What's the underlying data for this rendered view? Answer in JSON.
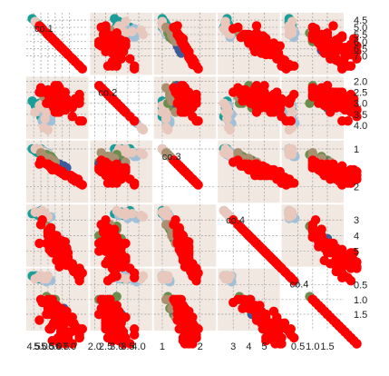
{
  "chart_data": {
    "type": "scatter",
    "variables": [
      {
        "name": "col1",
        "label": "co.1",
        "range": [
          4.3,
          8.0
        ],
        "ticks_bottom": [
          "4.5",
          "5.0",
          "5.5",
          "6.0",
          "6.5",
          "7.0"
        ],
        "ticks_right": [
          "4.5",
          "5.0",
          "5.5",
          "6.0",
          "6.5",
          "7.0"
        ],
        "tick_values": [
          4.5,
          5.0,
          5.5,
          6.0,
          6.5,
          7.0
        ]
      },
      {
        "name": "col2",
        "label": "co.2",
        "range": [
          2.0,
          4.4
        ],
        "ticks_bottom": [
          "2.0",
          "2.5",
          "3.0",
          "3.5",
          "4.0"
        ],
        "ticks_right": [
          "2.0",
          "2.5",
          "3.0",
          "3.5",
          "4.0"
        ],
        "tick_values": [
          2.0,
          2.5,
          3.0,
          3.5,
          4.0
        ]
      },
      {
        "name": "col3",
        "label": "co.3",
        "range": [
          0.9,
          2.3
        ],
        "ticks_bottom": [
          "1",
          "2"
        ],
        "ticks_right": [
          "1",
          "2"
        ],
        "tick_values": [
          1,
          2
        ]
      },
      {
        "name": "col4",
        "label": "co.4",
        "range": [
          2.3,
          5.7
        ],
        "ticks_bottom": [
          "3",
          "4",
          "5"
        ],
        "ticks_right": [
          "3",
          "4",
          "5"
        ],
        "tick_values": [
          3,
          4,
          5
        ]
      },
      {
        "name": "col5",
        "label": "co.4",
        "range": [
          0.1,
          1.9
        ],
        "ticks_bottom": [
          "0.5",
          "1.0",
          "1.5"
        ],
        "ticks_right": [
          "0.5",
          "1.0",
          "1.5"
        ],
        "tick_values": [
          0.5,
          1.0,
          1.5
        ]
      }
    ],
    "groups": [
      {
        "color": "#1a9e9a",
        "center": [
          4.8,
          3.3,
          1.05,
          2.6,
          0.25
        ]
      },
      {
        "color": "#9fc0d8",
        "center": [
          5.2,
          3.1,
          1.1,
          2.7,
          0.3
        ]
      },
      {
        "color": "#e8c8bc",
        "center": [
          5.0,
          3.2,
          1.05,
          2.5,
          0.25
        ]
      },
      {
        "color": "#6b8e4e",
        "center": [
          5.6,
          2.9,
          1.2,
          3.6,
          0.9
        ]
      },
      {
        "color": "#3d5a99",
        "center": [
          5.9,
          2.8,
          1.35,
          4.0,
          1.1
        ]
      },
      {
        "color": "#a89070",
        "center": [
          5.4,
          3.0,
          1.25,
          3.3,
          0.7
        ]
      },
      {
        "color": "#ff0000",
        "center": [
          6.3,
          2.9,
          1.3,
          4.8,
          1.5
        ]
      }
    ],
    "points": [
      [
        4.4,
        2.9,
        1.0,
        2.6,
        0.2,
        0
      ],
      [
        4.6,
        3.1,
        1.05,
        2.5,
        0.2,
        0
      ],
      [
        4.8,
        3.4,
        1.1,
        2.7,
        0.3,
        0
      ],
      [
        5.0,
        3.6,
        1.0,
        2.4,
        0.2,
        0
      ],
      [
        4.9,
        3.0,
        1.05,
        2.6,
        0.25,
        0
      ],
      [
        5.1,
        3.5,
        1.1,
        2.8,
        0.3,
        0
      ],
      [
        4.7,
        3.2,
        1.0,
        2.5,
        0.2,
        0
      ],
      [
        5.0,
        3.3,
        1.15,
        2.7,
        0.3,
        0
      ],
      [
        5.0,
        3.4,
        1.05,
        2.6,
        0.2,
        1
      ],
      [
        5.2,
        3.5,
        1.1,
        2.8,
        0.3,
        1
      ],
      [
        5.4,
        3.9,
        1.2,
        2.9,
        0.4,
        1
      ],
      [
        5.1,
        3.8,
        1.1,
        2.7,
        0.3,
        1
      ],
      [
        5.3,
        3.7,
        1.15,
        2.6,
        0.25,
        1
      ],
      [
        5.5,
        3.5,
        1.1,
        2.9,
        0.2,
        1
      ],
      [
        5.2,
        3.1,
        1.05,
        2.7,
        0.3,
        1
      ],
      [
        5.7,
        3.8,
        1.2,
        2.8,
        0.35,
        1
      ],
      [
        4.9,
        3.1,
        1.0,
        2.5,
        0.2,
        2
      ],
      [
        5.0,
        3.2,
        1.05,
        2.6,
        0.25,
        2
      ],
      [
        5.1,
        3.0,
        1.1,
        2.4,
        0.2,
        2
      ],
      [
        5.4,
        3.4,
        1.15,
        2.7,
        0.3,
        2
      ],
      [
        4.6,
        3.4,
        1.0,
        2.5,
        0.3,
        2
      ],
      [
        5.3,
        3.7,
        1.1,
        2.6,
        0.25,
        2
      ],
      [
        5.5,
        4.2,
        1.15,
        2.8,
        0.2,
        2
      ],
      [
        5.2,
        4.1,
        1.1,
        2.7,
        0.3,
        2
      ],
      [
        5.5,
        2.4,
        1.2,
        3.5,
        1.0,
        3
      ],
      [
        5.7,
        2.8,
        1.3,
        3.8,
        1.2,
        3
      ],
      [
        5.8,
        2.7,
        1.25,
        3.9,
        1.1,
        3
      ],
      [
        6.0,
        2.2,
        1.35,
        4.0,
        1.0,
        3
      ],
      [
        5.6,
        3.0,
        1.2,
        3.6,
        1.3,
        3
      ],
      [
        5.4,
        3.0,
        1.15,
        3.4,
        0.9,
        3
      ],
      [
        5.9,
        3.2,
        1.3,
        4.2,
        1.5,
        3
      ],
      [
        5.7,
        2.6,
        1.2,
        3.5,
        1.0,
        3
      ],
      [
        6.1,
        2.8,
        1.4,
        4.0,
        1.3,
        4
      ],
      [
        5.9,
        3.0,
        1.35,
        4.2,
        1.5,
        4
      ],
      [
        6.3,
        2.5,
        1.4,
        4.4,
        1.3,
        4
      ],
      [
        6.6,
        2.9,
        1.45,
        4.6,
        1.3,
        4
      ],
      [
        6.2,
        2.2,
        1.4,
        4.5,
        1.5,
        4
      ],
      [
        6.8,
        2.8,
        1.5,
        4.8,
        1.4,
        4
      ],
      [
        6.4,
        3.2,
        1.45,
        4.5,
        1.5,
        4
      ],
      [
        5.8,
        2.7,
        1.3,
        4.1,
        1.0,
        4
      ],
      [
        5.5,
        2.5,
        1.25,
        4.0,
        1.3,
        5
      ],
      [
        5.8,
        2.6,
        1.3,
        3.9,
        1.2,
        5
      ],
      [
        5.2,
        2.7,
        1.2,
        3.3,
        1.0,
        5
      ],
      [
        5.6,
        2.9,
        1.25,
        3.6,
        1.3,
        5
      ],
      [
        6.0,
        3.4,
        1.35,
        4.5,
        1.6,
        5
      ],
      [
        5.0,
        2.3,
        1.1,
        3.3,
        1.0,
        5
      ],
      [
        6.3,
        3.3,
        1.6,
        6.0,
        2.5,
        6
      ],
      [
        5.8,
        2.7,
        1.55,
        5.1,
        1.9,
        6
      ],
      [
        7.1,
        3.0,
        1.7,
        5.9,
        2.1,
        6
      ],
      [
        6.3,
        2.9,
        1.6,
        5.6,
        1.8,
        6
      ],
      [
        6.5,
        3.0,
        1.65,
        5.8,
        2.2,
        6
      ],
      [
        7.6,
        3.0,
        1.8,
        6.6,
        2.1,
        6
      ],
      [
        4.9,
        2.5,
        1.4,
        4.5,
        1.7,
        6
      ],
      [
        7.3,
        2.9,
        1.75,
        6.3,
        1.8,
        6
      ],
      [
        6.7,
        2.5,
        1.7,
        5.8,
        1.8,
        6
      ],
      [
        7.2,
        3.6,
        1.8,
        6.1,
        2.5,
        6
      ],
      [
        6.5,
        3.2,
        1.6,
        5.1,
        2.0,
        6
      ],
      [
        6.4,
        2.7,
        1.6,
        5.3,
        1.9,
        6
      ],
      [
        6.8,
        3.0,
        1.7,
        5.5,
        2.1,
        6
      ],
      [
        5.7,
        2.5,
        1.5,
        5.0,
        2.0,
        6
      ],
      [
        5.8,
        2.8,
        1.55,
        5.1,
        2.4,
        6
      ],
      [
        6.4,
        3.2,
        1.6,
        5.3,
        2.3,
        6
      ],
      [
        6.5,
        3.0,
        1.65,
        5.5,
        1.8,
        6
      ],
      [
        7.7,
        3.8,
        1.9,
        6.7,
        2.2,
        6
      ],
      [
        7.7,
        2.6,
        1.9,
        6.9,
        2.3,
        6
      ],
      [
        6.0,
        2.2,
        1.5,
        5.0,
        1.5,
        6
      ],
      [
        6.9,
        3.2,
        1.7,
        5.7,
        2.3,
        6
      ],
      [
        5.6,
        2.8,
        1.45,
        4.9,
        2.0,
        6
      ],
      [
        7.7,
        2.8,
        1.9,
        6.7,
        2.0,
        6
      ],
      [
        6.3,
        2.7,
        1.6,
        4.9,
        1.8,
        6
      ],
      [
        6.7,
        3.3,
        1.7,
        5.7,
        2.1,
        6
      ],
      [
        7.2,
        3.2,
        1.8,
        6.0,
        1.8,
        6
      ],
      [
        6.2,
        2.8,
        1.55,
        4.8,
        1.8,
        6
      ],
      [
        6.1,
        3.0,
        1.55,
        4.9,
        1.8,
        6
      ],
      [
        6.4,
        2.8,
        1.6,
        5.6,
        2.1,
        6
      ],
      [
        7.2,
        3.0,
        1.8,
        5.8,
        1.6,
        6
      ],
      [
        7.4,
        2.8,
        1.85,
        6.1,
        1.9,
        6
      ],
      [
        7.9,
        3.8,
        1.95,
        6.4,
        2.0,
        6
      ],
      [
        6.4,
        2.8,
        1.6,
        5.6,
        2.2,
        6
      ],
      [
        6.3,
        2.8,
        1.6,
        5.1,
        1.5,
        6
      ],
      [
        6.1,
        2.6,
        1.55,
        5.6,
        1.4,
        6
      ],
      [
        7.7,
        3.0,
        1.9,
        6.1,
        2.3,
        6
      ],
      [
        6.3,
        3.4,
        1.6,
        5.6,
        2.4,
        6
      ],
      [
        6.4,
        3.1,
        1.6,
        5.5,
        1.8,
        6
      ],
      [
        6.0,
        3.0,
        1.5,
        4.8,
        1.8,
        6
      ],
      [
        6.9,
        3.1,
        1.7,
        5.4,
        2.1,
        6
      ],
      [
        6.7,
        3.1,
        1.7,
        5.6,
        2.4,
        6
      ],
      [
        6.9,
        3.1,
        1.7,
        5.1,
        2.3,
        6
      ],
      [
        5.8,
        2.7,
        1.5,
        5.1,
        1.9,
        6
      ],
      [
        6.8,
        3.2,
        1.7,
        5.9,
        2.3,
        6
      ],
      [
        6.7,
        3.3,
        1.7,
        5.7,
        2.5,
        6
      ],
      [
        6.7,
        3.0,
        1.7,
        5.2,
        2.3,
        6
      ],
      [
        6.3,
        2.5,
        1.6,
        5.0,
        1.9,
        6
      ],
      [
        6.5,
        3.0,
        1.65,
        5.2,
        2.0,
        6
      ],
      [
        6.2,
        3.4,
        1.55,
        5.4,
        2.3,
        6
      ],
      [
        5.9,
        3.0,
        1.5,
        5.1,
        1.8,
        6
      ],
      [
        6.6,
        3.0,
        1.65,
        4.4,
        1.4,
        6
      ],
      [
        6.1,
        2.9,
        1.55,
        4.7,
        1.4,
        6
      ],
      [
        5.6,
        2.9,
        1.45,
        3.6,
        1.3,
        6
      ],
      [
        6.7,
        3.1,
        1.7,
        4.4,
        1.4,
        6
      ],
      [
        5.6,
        3.0,
        1.45,
        4.5,
        1.5,
        6
      ],
      [
        5.8,
        2.7,
        1.5,
        4.1,
        1.0,
        6
      ],
      [
        6.2,
        2.2,
        1.55,
        4.5,
        1.5,
        6
      ],
      [
        5.6,
        2.5,
        1.45,
        3.9,
        1.1,
        6
      ],
      [
        5.9,
        3.2,
        1.5,
        4.8,
        1.8,
        6
      ],
      [
        6.1,
        2.8,
        1.55,
        4.0,
        1.3,
        6
      ],
      [
        6.3,
        2.5,
        1.6,
        4.9,
        1.5,
        6
      ],
      [
        6.1,
        2.8,
        1.55,
        4.7,
        1.2,
        6
      ],
      [
        6.4,
        2.9,
        1.6,
        4.3,
        1.3,
        6
      ],
      [
        6.6,
        3.0,
        1.65,
        4.4,
        1.4,
        6
      ],
      [
        6.8,
        2.8,
        1.7,
        4.8,
        1.4,
        6
      ],
      [
        6.7,
        3.0,
        1.7,
        5.0,
        1.7,
        6
      ],
      [
        6.0,
        2.9,
        1.5,
        4.5,
        1.5,
        6
      ],
      [
        5.7,
        2.6,
        1.45,
        3.5,
        1.0,
        6
      ],
      [
        5.5,
        2.4,
        1.4,
        3.8,
        1.1,
        6
      ],
      [
        5.5,
        2.4,
        1.4,
        3.7,
        1.0,
        6
      ],
      [
        5.8,
        2.7,
        1.5,
        3.9,
        1.2,
        6
      ],
      [
        6.0,
        2.7,
        1.5,
        5.1,
        1.6,
        6
      ],
      [
        5.4,
        3.0,
        1.4,
        4.5,
        1.5,
        6
      ],
      [
        6.0,
        3.4,
        1.5,
        4.5,
        1.6,
        6
      ],
      [
        6.7,
        3.1,
        1.7,
        4.7,
        1.5,
        6
      ],
      [
        6.3,
        2.3,
        1.6,
        4.4,
        1.3,
        6
      ],
      [
        5.6,
        3.0,
        1.45,
        4.1,
        1.3,
        6
      ],
      [
        5.5,
        2.5,
        1.4,
        4.0,
        1.3,
        6
      ],
      [
        5.5,
        2.6,
        1.4,
        4.4,
        1.2,
        6
      ],
      [
        6.1,
        3.0,
        1.55,
        4.6,
        1.4,
        6
      ],
      [
        5.8,
        2.6,
        1.5,
        4.0,
        1.2,
        6
      ],
      [
        5.0,
        2.3,
        1.3,
        3.3,
        1.0,
        6
      ],
      [
        5.6,
        2.7,
        1.45,
        4.2,
        1.3,
        6
      ],
      [
        5.7,
        3.0,
        1.45,
        4.2,
        1.2,
        6
      ],
      [
        5.7,
        2.9,
        1.45,
        4.2,
        1.3,
        6
      ],
      [
        6.2,
        2.9,
        1.55,
        4.3,
        1.3,
        6
      ],
      [
        5.1,
        2.5,
        1.35,
        3.0,
        1.1,
        6
      ],
      [
        5.7,
        2.8,
        1.45,
        4.1,
        1.3,
        6
      ]
    ]
  }
}
